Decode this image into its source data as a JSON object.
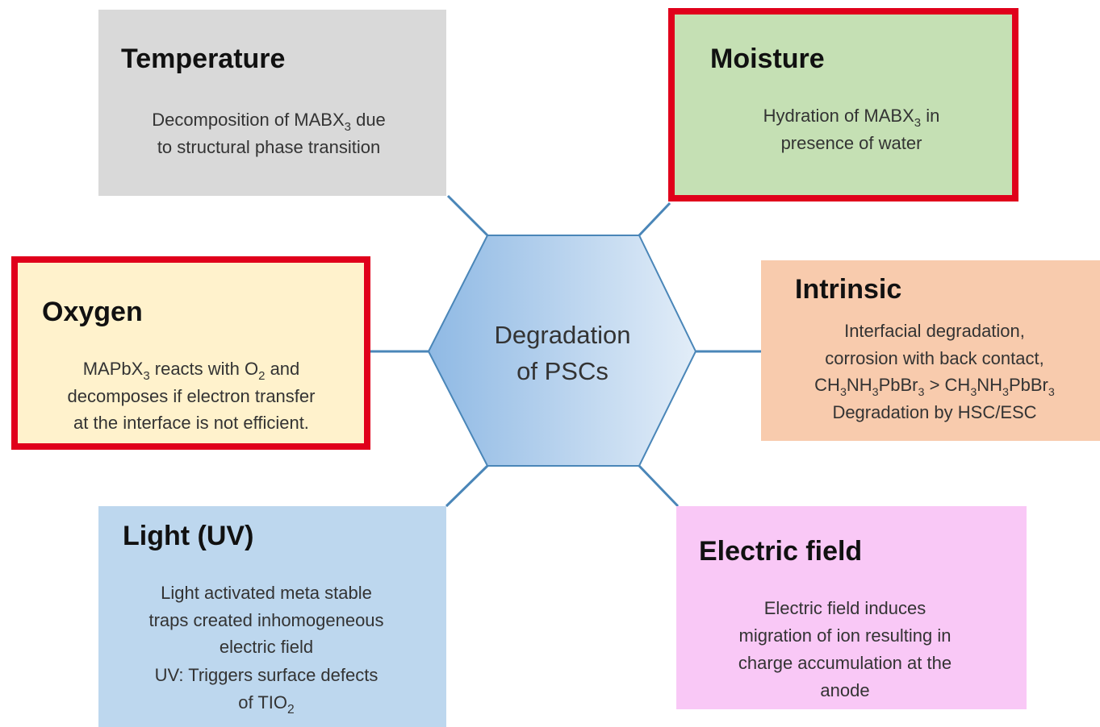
{
  "center": {
    "lines": [
      "Degradation",
      "of PSCs"
    ]
  },
  "boxes": [
    {
      "title": "Temperature",
      "description": [
        [
          "Decomposition of MABX",
          {
            "sub": "3"
          },
          " due"
        ],
        [
          "to structural phase transition"
        ]
      ]
    },
    {
      "title": "Moisture",
      "description": [
        [
          "Hydration of MABX",
          {
            "sub": "3"
          },
          " in"
        ],
        [
          "presence of water"
        ]
      ]
    },
    {
      "title": "Oxygen",
      "description": [
        [
          "MAPbX",
          {
            "sub": "3"
          },
          " reacts with O",
          {
            "sub": "2"
          },
          " and"
        ],
        [
          "decomposes if electron transfer"
        ],
        [
          "at the interface is not efficient."
        ]
      ]
    },
    {
      "title": "Intrinsic",
      "description": [
        [
          "Interfacial degradation,"
        ],
        [
          "corrosion with back contact,"
        ],
        [
          "CH",
          {
            "sub": "3"
          },
          "NH",
          {
            "sub": "3"
          },
          "PbBr",
          {
            "sub": "3"
          },
          " > CH",
          {
            "sub": "3"
          },
          "NH",
          {
            "sub": "3"
          },
          "PbBr",
          {
            "sub": "3"
          }
        ],
        [
          "Degradation by HSC/ESC"
        ]
      ]
    },
    {
      "title": "Light (UV)",
      "description": [
        [
          "Light activated meta stable"
        ],
        [
          "traps created inhomogeneous"
        ],
        [
          "electric field"
        ],
        [
          "UV: Triggers surface defects"
        ],
        [
          "of TIO",
          {
            "sub": "2"
          }
        ]
      ]
    },
    {
      "title": "Electric field",
      "description": [
        [
          "Electric field induces"
        ],
        [
          "migration of ion resulting in"
        ],
        [
          "charge accumulation at the"
        ],
        [
          "anode"
        ]
      ]
    }
  ]
}
